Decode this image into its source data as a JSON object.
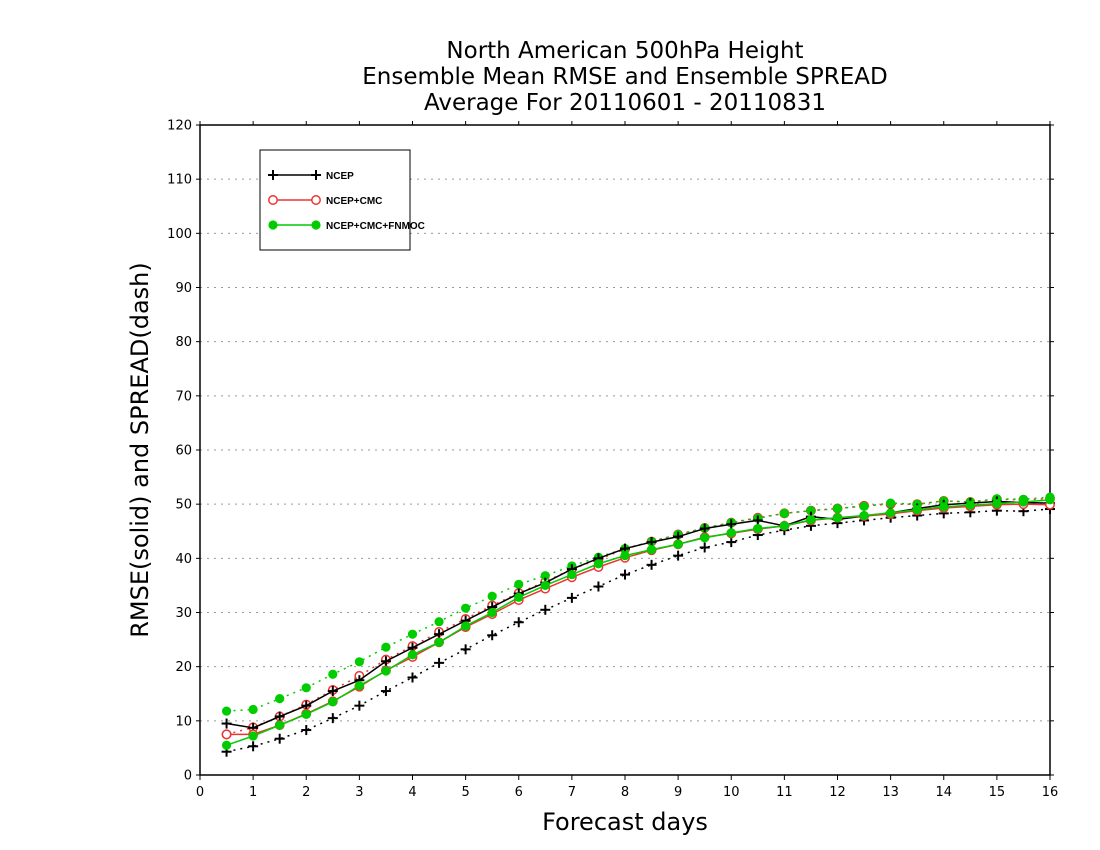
{
  "chart_data": {
    "type": "line",
    "title": [
      "North American 500hPa Height",
      "Ensemble Mean RMSE and Ensemble SPREAD",
      "Average For 20110601 - 20110831"
    ],
    "xlabel": "Forecast days",
    "ylabel": "RMSE(solid) and SPREAD(dash)",
    "xlim": [
      0,
      16
    ],
    "ylim": [
      0,
      120
    ],
    "xticks": [
      "0",
      "1",
      "2",
      "3",
      "4",
      "5",
      "6",
      "7",
      "8",
      "9",
      "10",
      "11",
      "12",
      "13",
      "14",
      "15",
      "16"
    ],
    "yticks": [
      "0",
      "10",
      "20",
      "30",
      "40",
      "50",
      "60",
      "70",
      "80",
      "90",
      "100",
      "110",
      "120"
    ],
    "grid": true,
    "legend_position": "top-left",
    "x": [
      0.5,
      1,
      1.5,
      2,
      2.5,
      3,
      3.5,
      4,
      4.5,
      5,
      5.5,
      6,
      6.5,
      7,
      7.5,
      8,
      8.5,
      9,
      9.5,
      10,
      10.5,
      11,
      11.5,
      12,
      12.5,
      13,
      13.5,
      14,
      14.5,
      15,
      15.5,
      16
    ],
    "series": [
      {
        "name": "NCEP",
        "color": "#000000",
        "marker": "plus",
        "rmse": [
          9.5,
          8.7,
          10.8,
          12.8,
          15.5,
          17.5,
          21.0,
          23.5,
          26.0,
          28.5,
          31.0,
          33.5,
          35.5,
          38.0,
          40.0,
          41.8,
          43.0,
          44.0,
          45.5,
          46.3,
          47.0,
          46.0,
          47.7,
          47.2,
          47.8,
          48.4,
          49.2,
          49.9,
          50.2,
          50.5,
          50.3,
          50.2
        ],
        "spread": [
          4.3,
          5.3,
          6.7,
          8.3,
          10.5,
          12.8,
          15.5,
          18.0,
          20.7,
          23.2,
          25.8,
          28.2,
          30.5,
          32.7,
          34.8,
          37.0,
          38.8,
          40.5,
          42.0,
          43.0,
          44.3,
          45.2,
          46.0,
          46.5,
          47.0,
          47.5,
          47.9,
          48.3,
          48.5,
          48.8,
          48.7,
          49.1
        ]
      },
      {
        "name": "NCEP+CMC",
        "color": "#ee3333",
        "marker": "open-circle",
        "rmse": [
          7.5,
          7.5,
          9.2,
          11.3,
          13.6,
          16.3,
          19.3,
          21.8,
          24.5,
          27.3,
          29.7,
          32.3,
          34.4,
          36.5,
          38.4,
          40.1,
          41.5,
          42.6,
          43.9,
          44.6,
          45.4,
          46.0,
          47.0,
          47.5,
          47.8,
          48.2,
          48.8,
          49.3,
          49.6,
          49.9,
          50.0,
          49.9
        ],
        "spread": [
          7.5,
          8.8,
          10.8,
          13.0,
          15.7,
          18.3,
          21.3,
          23.8,
          26.4,
          28.8,
          31.3,
          33.6,
          35.7,
          38.0,
          39.8,
          41.7,
          43.1,
          44.4,
          45.6,
          46.6,
          47.5,
          48.3,
          48.8,
          49.2,
          49.7,
          50.0,
          50.0,
          50.6,
          50.4,
          50.9,
          50.8,
          51.0
        ]
      },
      {
        "name": "NCEP+CMC+FNMOC",
        "color": "#00cc00",
        "marker": "filled-circle",
        "rmse": [
          5.5,
          7.2,
          9.2,
          11.2,
          13.5,
          16.5,
          19.2,
          22.2,
          24.5,
          27.5,
          30.0,
          32.8,
          35.0,
          37.0,
          39.0,
          40.5,
          41.6,
          42.6,
          43.8,
          44.7,
          45.5,
          46.0,
          47.1,
          47.5,
          47.9,
          48.4,
          49.0,
          49.5,
          49.8,
          50.1,
          50.4,
          50.8
        ],
        "spread": [
          11.8,
          12.1,
          14.1,
          16.1,
          18.6,
          20.9,
          23.6,
          26.0,
          28.3,
          30.8,
          33.0,
          35.2,
          36.8,
          38.6,
          40.2,
          41.8,
          43.1,
          44.4,
          45.6,
          46.6,
          47.4,
          48.3,
          48.8,
          49.2,
          49.6,
          50.2,
          50.0,
          50.6,
          50.4,
          51.0,
          50.9,
          51.3
        ]
      }
    ]
  }
}
